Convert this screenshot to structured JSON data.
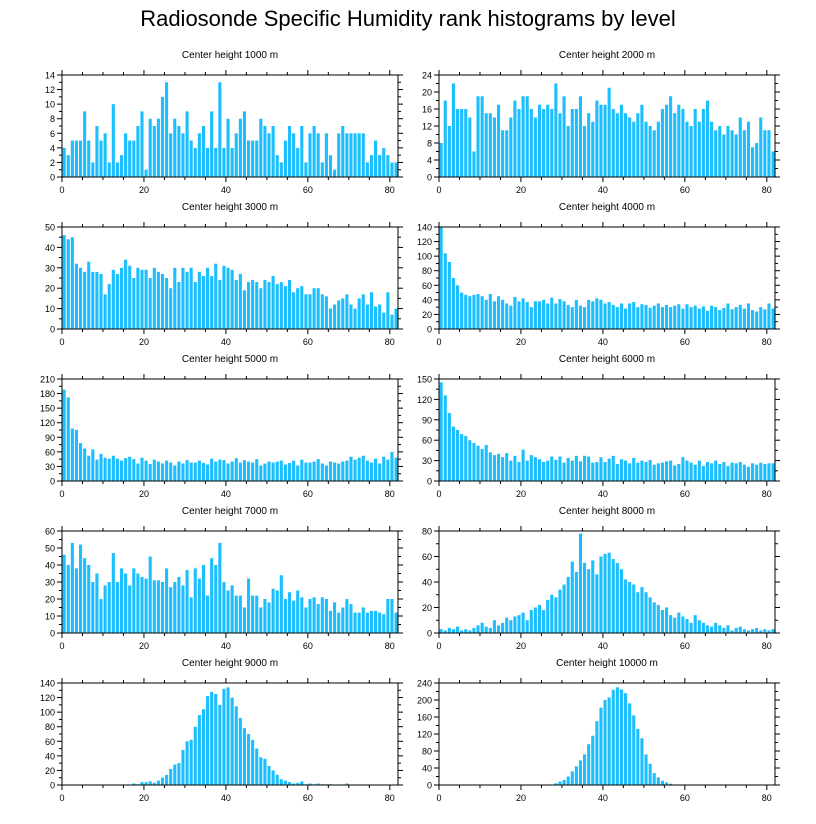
{
  "title": "Radiosonde Specific Humidity rank histograms by level",
  "bar_color": "#1bbfff",
  "chart_data": [
    {
      "type": "bar",
      "title": "Center height 1000 m",
      "xlabel": "",
      "ylabel": "",
      "xlim": [
        0,
        82
      ],
      "ylim": [
        0,
        14
      ],
      "xticks": [
        0,
        20,
        40,
        60,
        80
      ],
      "yticks": [
        0,
        2,
        4,
        6,
        8,
        10,
        12,
        14
      ],
      "values": [
        4,
        3,
        5,
        5,
        5,
        9,
        5,
        2,
        7,
        5,
        6,
        2,
        10,
        2,
        3,
        6,
        5,
        5,
        7,
        9,
        1,
        8,
        7,
        8,
        11,
        13,
        6,
        8,
        7,
        6,
        9,
        5,
        4,
        6,
        7,
        4,
        9,
        4,
        13,
        4,
        8,
        4,
        6,
        8,
        9,
        5,
        5,
        5,
        8,
        7,
        6,
        7,
        3,
        2,
        5,
        7,
        6,
        4,
        7,
        2,
        6,
        7,
        6,
        2,
        6,
        3,
        1,
        6,
        7,
        6,
        6,
        6,
        6,
        6,
        2,
        3,
        5,
        3,
        4,
        3,
        2,
        2
      ]
    },
    {
      "type": "bar",
      "title": "Center height 2000 m",
      "xlabel": "",
      "ylabel": "",
      "xlim": [
        0,
        82
      ],
      "ylim": [
        0,
        24
      ],
      "xticks": [
        0,
        20,
        40,
        60,
        80
      ],
      "yticks": [
        0,
        4,
        8,
        12,
        16,
        20,
        24
      ],
      "values": [
        8,
        18,
        12,
        22,
        16,
        16,
        16,
        14,
        6,
        19,
        19,
        15,
        15,
        14,
        17,
        11,
        11,
        14,
        18,
        16,
        19,
        19,
        16,
        14,
        17,
        16,
        17,
        16,
        22,
        15,
        19,
        12,
        16,
        16,
        19,
        12,
        15,
        13,
        18,
        17,
        17,
        21,
        16,
        15,
        17,
        15,
        14,
        13,
        15,
        17,
        13,
        12,
        11,
        13,
        16,
        17,
        19,
        15,
        17,
        16,
        13,
        12,
        16,
        13,
        16,
        18,
        13,
        11,
        12,
        10,
        12,
        11,
        10,
        14,
        11,
        13,
        7,
        8,
        14,
        11,
        11,
        6
      ]
    },
    {
      "type": "bar",
      "title": "Center height 3000 m",
      "xlabel": "",
      "ylabel": "",
      "xlim": [
        0,
        82
      ],
      "ylim": [
        0,
        50
      ],
      "xticks": [
        0,
        20,
        40,
        60,
        80
      ],
      "yticks": [
        0,
        10,
        20,
        30,
        40,
        50
      ],
      "values": [
        46,
        44,
        45,
        32,
        30,
        28,
        33,
        28,
        28,
        27,
        17,
        22,
        29,
        27,
        30,
        34,
        31,
        25,
        30,
        29,
        29,
        25,
        30,
        28,
        27,
        25,
        20,
        30,
        23,
        30,
        28,
        30,
        23,
        28,
        26,
        30,
        26,
        32,
        24,
        31,
        30,
        29,
        24,
        27,
        19,
        23,
        24,
        23,
        20,
        24,
        23,
        26,
        22,
        23,
        21,
        24,
        18,
        20,
        21,
        17,
        17,
        20,
        20,
        17,
        16,
        10,
        12,
        14,
        15,
        17,
        12,
        10,
        15,
        17,
        12,
        18,
        11,
        12,
        8,
        18,
        7,
        10
      ]
    },
    {
      "type": "bar",
      "title": "Center height 4000 m",
      "xlabel": "",
      "ylabel": "",
      "xlim": [
        0,
        82
      ],
      "ylim": [
        0,
        140
      ],
      "xticks": [
        0,
        20,
        40,
        60,
        80
      ],
      "yticks": [
        0,
        20,
        40,
        60,
        80,
        100,
        120,
        140
      ],
      "values": [
        140,
        104,
        92,
        70,
        60,
        50,
        47,
        45,
        47,
        48,
        45,
        40,
        48,
        38,
        45,
        40,
        35,
        32,
        44,
        38,
        42,
        37,
        30,
        38,
        38,
        40,
        35,
        43,
        35,
        41,
        38,
        33,
        30,
        40,
        32,
        30,
        40,
        38,
        42,
        40,
        35,
        37,
        33,
        30,
        35,
        28,
        35,
        37,
        30,
        34,
        33,
        29,
        32,
        35,
        30,
        33,
        30,
        32,
        34,
        28,
        34,
        30,
        32,
        28,
        31,
        25,
        32,
        30,
        26,
        29,
        35,
        27,
        30,
        33,
        28,
        35,
        26,
        24,
        30,
        27,
        35,
        28
      ]
    },
    {
      "type": "bar",
      "title": "Center height 5000 m",
      "xlabel": "",
      "ylabel": "",
      "xlim": [
        0,
        82
      ],
      "ylim": [
        0,
        210
      ],
      "xticks": [
        0,
        20,
        40,
        60,
        80
      ],
      "yticks": [
        0,
        30,
        60,
        90,
        120,
        150,
        180,
        210
      ],
      "values": [
        188,
        172,
        108,
        105,
        78,
        67,
        52,
        65,
        44,
        56,
        48,
        46,
        52,
        46,
        42,
        47,
        50,
        45,
        36,
        48,
        42,
        35,
        44,
        40,
        36,
        42,
        38,
        32,
        40,
        36,
        43,
        38,
        38,
        42,
        37,
        34,
        46,
        40,
        44,
        43,
        36,
        40,
        47,
        38,
        43,
        40,
        38,
        45,
        32,
        36,
        40,
        38,
        40,
        42,
        34,
        37,
        42,
        32,
        44,
        38,
        38,
        40,
        45,
        36,
        32,
        40,
        38,
        36,
        40,
        42,
        50,
        44,
        48,
        52,
        42,
        38,
        46,
        36,
        50,
        44,
        60,
        48
      ]
    },
    {
      "type": "bar",
      "title": "Center height 6000 m",
      "xlabel": "",
      "ylabel": "",
      "xlim": [
        0,
        82
      ],
      "ylim": [
        0,
        150
      ],
      "xticks": [
        0,
        20,
        40,
        60,
        80
      ],
      "yticks": [
        0,
        30,
        60,
        90,
        120,
        150
      ],
      "values": [
        145,
        126,
        100,
        80,
        75,
        69,
        66,
        60,
        56,
        52,
        47,
        53,
        42,
        38,
        40,
        35,
        41,
        30,
        37,
        28,
        46,
        30,
        38,
        35,
        32,
        28,
        30,
        36,
        31,
        36,
        27,
        34,
        30,
        37,
        29,
        37,
        36,
        27,
        28,
        35,
        28,
        33,
        37,
        25,
        32,
        30,
        26,
        34,
        27,
        30,
        28,
        31,
        24,
        26,
        27,
        29,
        30,
        23,
        25,
        35,
        30,
        27,
        24,
        30,
        22,
        28,
        26,
        30,
        25,
        28,
        22,
        27,
        26,
        28,
        24,
        21,
        26,
        24,
        27,
        25,
        26,
        26
      ]
    },
    {
      "type": "bar",
      "title": "Center height 7000 m",
      "xlabel": "",
      "ylabel": "",
      "xlim": [
        0,
        82
      ],
      "ylim": [
        0,
        60
      ],
      "xticks": [
        0,
        20,
        40,
        60,
        80
      ],
      "yticks": [
        0,
        10,
        20,
        30,
        40,
        50,
        60
      ],
      "values": [
        46,
        40,
        53,
        38,
        52,
        44,
        40,
        30,
        35,
        20,
        28,
        30,
        47,
        30,
        38,
        35,
        28,
        38,
        35,
        33,
        32,
        45,
        31,
        31,
        30,
        38,
        27,
        30,
        33,
        28,
        37,
        21,
        38,
        32,
        40,
        22,
        44,
        40,
        53,
        30,
        25,
        28,
        22,
        22,
        15,
        32,
        22,
        22,
        15,
        20,
        18,
        26,
        25,
        34,
        20,
        24,
        19,
        25,
        21,
        15,
        20,
        21,
        17,
        21,
        20,
        13,
        18,
        12,
        15,
        20,
        17,
        12,
        12,
        15,
        12,
        13,
        13,
        12,
        11,
        20,
        20,
        12
      ]
    },
    {
      "type": "bar",
      "title": "Center height 8000 m",
      "xlabel": "",
      "ylabel": "",
      "xlim": [
        0,
        82
      ],
      "ylim": [
        0,
        80
      ],
      "xticks": [
        0,
        20,
        40,
        60,
        80
      ],
      "yticks": [
        0,
        20,
        40,
        60,
        80
      ],
      "values": [
        3,
        2,
        4,
        3,
        5,
        2,
        3,
        2,
        4,
        6,
        8,
        5,
        4,
        10,
        6,
        8,
        12,
        10,
        13,
        14,
        16,
        10,
        18,
        20,
        22,
        18,
        26,
        30,
        28,
        34,
        38,
        44,
        56,
        48,
        78,
        55,
        50,
        57,
        46,
        60,
        62,
        63,
        58,
        55,
        50,
        42,
        40,
        38,
        32,
        36,
        32,
        28,
        24,
        22,
        18,
        20,
        14,
        12,
        16,
        13,
        11,
        8,
        14,
        10,
        8,
        6,
        5,
        8,
        6,
        4,
        6,
        2,
        4,
        5,
        3,
        2,
        3,
        4,
        2,
        3,
        2,
        3
      ]
    },
    {
      "type": "bar",
      "title": "Center height 9000 m",
      "xlabel": "",
      "ylabel": "",
      "xlim": [
        0,
        82
      ],
      "ylim": [
        0,
        140
      ],
      "xticks": [
        0,
        20,
        40,
        60,
        80
      ],
      "yticks": [
        0,
        20,
        40,
        60,
        80,
        100,
        120,
        140
      ],
      "values": [
        0,
        0,
        0,
        0,
        0,
        0,
        0,
        0,
        0,
        0,
        0,
        0,
        0,
        0,
        0,
        0,
        0,
        2,
        1,
        4,
        4,
        5,
        3,
        6,
        10,
        14,
        22,
        28,
        30,
        48,
        60,
        62,
        80,
        96,
        104,
        122,
        128,
        125,
        110,
        132,
        134,
        120,
        108,
        92,
        78,
        70,
        62,
        50,
        38,
        36,
        26,
        20,
        14,
        8,
        6,
        4,
        2,
        3,
        5,
        1,
        2,
        1,
        2,
        1,
        1,
        1,
        0,
        0,
        0,
        2,
        0,
        0,
        0,
        0,
        0,
        0,
        0,
        0,
        0,
        0,
        0,
        0
      ]
    },
    {
      "type": "bar",
      "title": "Center height 10000 m",
      "xlabel": "",
      "ylabel": "",
      "xlim": [
        0,
        82
      ],
      "ylim": [
        0,
        240
      ],
      "xticks": [
        0,
        20,
        40,
        60,
        80
      ],
      "yticks": [
        0,
        40,
        80,
        120,
        160,
        200,
        240
      ],
      "values": [
        0,
        0,
        0,
        0,
        0,
        0,
        0,
        0,
        0,
        0,
        0,
        0,
        0,
        0,
        0,
        0,
        0,
        0,
        0,
        0,
        0,
        0,
        0,
        0,
        0,
        0,
        0,
        1,
        4,
        8,
        12,
        20,
        32,
        44,
        58,
        72,
        96,
        116,
        150,
        182,
        200,
        206,
        224,
        230,
        225,
        216,
        192,
        164,
        132,
        110,
        72,
        50,
        28,
        18,
        10,
        6,
        3,
        1,
        1,
        0,
        0,
        0,
        0,
        0,
        0,
        0,
        0,
        0,
        0,
        0,
        0,
        0,
        0,
        0,
        0,
        0,
        0,
        0,
        0,
        0,
        0,
        0
      ]
    }
  ]
}
